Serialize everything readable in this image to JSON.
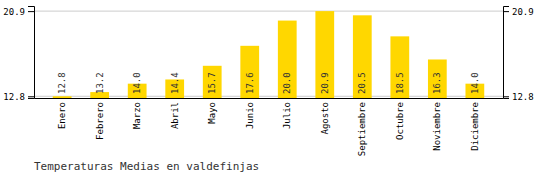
{
  "chart_data": {
    "type": "bar",
    "title": "Temperaturas Medias en valdefinjas",
    "categories": [
      "Enero",
      "Febrero",
      "Marzo",
      "Abril",
      "Mayo",
      "Junio",
      "Julio",
      "Agosto",
      "Septiembre",
      "Octubre",
      "Noviembre",
      "Diciembre"
    ],
    "values": [
      12.8,
      13.2,
      14.0,
      14.4,
      15.7,
      17.6,
      20.0,
      20.9,
      20.5,
      18.5,
      16.3,
      14.0
    ],
    "value_labels": [
      "12.8",
      "13.2",
      "14.0",
      "14.4",
      "15.7",
      "17.6",
      "20.0",
      "20.9",
      "20.5",
      "18.5",
      "16.3",
      "14.0"
    ],
    "data_labels": true,
    "color": "#FFD700",
    "ylim": [
      12.638,
      21.386
    ],
    "yticks": [
      12.8,
      20.9
    ],
    "grid": true
  }
}
